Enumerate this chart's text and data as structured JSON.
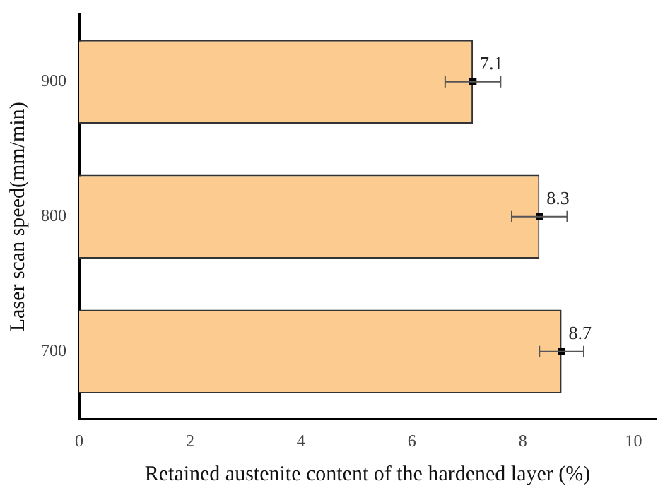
{
  "chart_data": {
    "type": "bar",
    "orientation": "horizontal",
    "categories": [
      "900",
      "800",
      "700"
    ],
    "series": [
      {
        "type": "bar",
        "values": [
          7.1,
          8.3,
          8.7
        ],
        "errors": [
          0.5,
          0.5,
          0.4
        ],
        "value_labels": [
          "7.1",
          "8.3",
          "8.7"
        ],
        "color": "#fccb90"
      },
      {
        "type": "scatter",
        "values": [
          7.1,
          8.3,
          8.7
        ],
        "color": "#000000",
        "marker": "square"
      }
    ],
    "xlim": [
      0,
      10.4
    ],
    "xticks": [
      0,
      2,
      4,
      6,
      8,
      10
    ],
    "xlabel": "Retained austenite content of the hardened layer (%)",
    "ylabel": "Laser scan speed(mm/min)",
    "grid": false,
    "legend": false
  }
}
